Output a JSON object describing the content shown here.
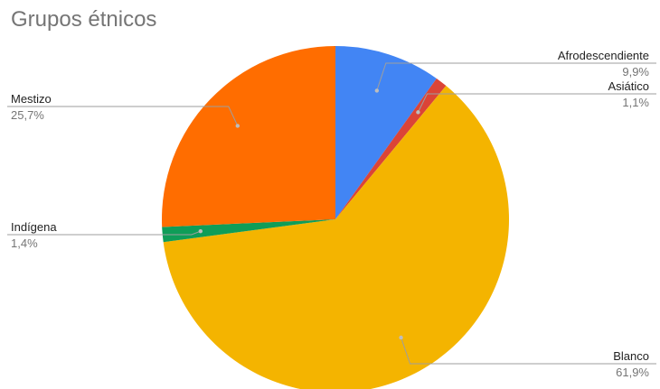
{
  "chart_data": {
    "type": "pie",
    "title": "Grupos étnicos",
    "start_angle_deg": 0,
    "direction": "clockwise",
    "slices": [
      {
        "name": "Afrodescendiente",
        "value": 9.9,
        "label": "9,9%",
        "color": "#4285f4",
        "side": "right"
      },
      {
        "name": "Asiático",
        "value": 1.1,
        "label": "1,1%",
        "color": "#db4437",
        "side": "right"
      },
      {
        "name": "Blanco",
        "value": 61.9,
        "label": "61,9%",
        "color": "#f4b400",
        "side": "right"
      },
      {
        "name": "Indígena",
        "value": 1.4,
        "label": "1,4%",
        "color": "#0f9d58",
        "side": "left"
      },
      {
        "name": "Mestizo",
        "value": 25.7,
        "label": "25,7%",
        "color": "#ff6d00",
        "side": "left"
      }
    ]
  }
}
